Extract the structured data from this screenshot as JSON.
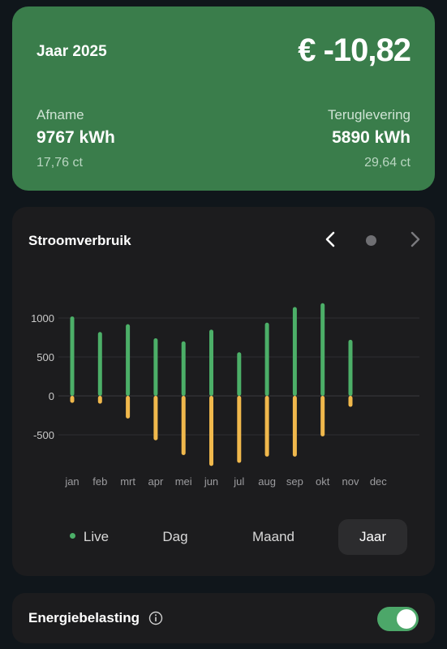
{
  "summary": {
    "year_label": "Jaar 2025",
    "total": "€ -10,82",
    "take": {
      "label": "Afname",
      "value": "9767 kWh",
      "price": "17,76 ct"
    },
    "return": {
      "label": "Teruglevering",
      "value": "5890 kWh",
      "price": "29,64 ct"
    }
  },
  "chart": {
    "title": "Stroomverbruik",
    "nav": {
      "prev_icon": "chevron-left-icon",
      "dot_icon": "dot-icon",
      "next_icon": "chevron-right-icon"
    }
  },
  "chart_data": {
    "type": "bar",
    "categories": [
      "jan",
      "feb",
      "mrt",
      "apr",
      "mei",
      "jun",
      "jul",
      "aug",
      "sep",
      "okt",
      "nov",
      "dec"
    ],
    "series": [
      {
        "values": [
          1020,
          820,
          920,
          740,
          700,
          850,
          560,
          940,
          1140,
          1190,
          720,
          0
        ],
        "color": "#4caf68"
      },
      {
        "values": [
          -90,
          -100,
          -290,
          -570,
          -760,
          -900,
          -860,
          -780,
          -780,
          -520,
          -140,
          0
        ],
        "color": "#f0b84c"
      }
    ],
    "yticks": [
      1000,
      500,
      0,
      -500
    ],
    "ylim": [
      -1000,
      1300
    ],
    "grid": true
  },
  "segments": {
    "live": "Live",
    "day": "Dag",
    "month": "Maand",
    "year": "Jaar",
    "active": "year"
  },
  "tax": {
    "label": "Energiebelasting",
    "info_icon": "info-icon",
    "enabled": true
  }
}
